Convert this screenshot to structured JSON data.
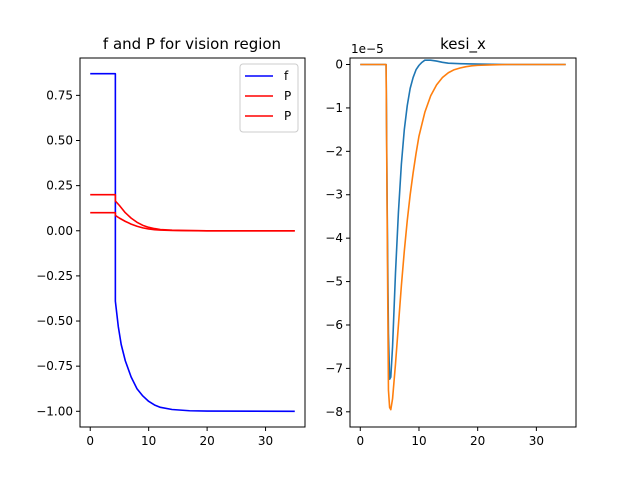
{
  "chart_data": [
    {
      "type": "line",
      "title": "f and P for vision region",
      "xlabel": "",
      "ylabel": "",
      "xlim": [
        -1.75,
        36.75
      ],
      "ylim": [
        -1.087,
        0.957
      ],
      "x_ticks": [
        0,
        10,
        20,
        30
      ],
      "x_tick_labels": [
        "0",
        "10",
        "20",
        "30"
      ],
      "y_ticks": [
        0.75,
        0.5,
        0.25,
        0.0,
        -0.25,
        -0.5,
        -0.75,
        -1.0
      ],
      "y_tick_labels": [
        "0.75",
        "0.50",
        "0.25",
        "0.00",
        "−0.25",
        "−0.50",
        "−0.75",
        "−1.00"
      ],
      "grid": false,
      "legend": "top-right",
      "series": [
        {
          "name": "f",
          "color": "#0000ff",
          "points": [
            [
              0,
              0.87
            ],
            [
              4.3,
              0.87
            ],
            [
              4.3,
              -0.39
            ],
            [
              4.8,
              -0.53
            ],
            [
              5.3,
              -0.63
            ],
            [
              6,
              -0.72
            ],
            [
              7,
              -0.81
            ],
            [
              8,
              -0.875
            ],
            [
              9,
              -0.915
            ],
            [
              10,
              -0.945
            ],
            [
              11,
              -0.965
            ],
            [
              12,
              -0.978
            ],
            [
              14,
              -0.99
            ],
            [
              17,
              -0.997
            ],
            [
              20,
              -0.999
            ],
            [
              35,
              -1.0
            ]
          ]
        },
        {
          "name": "P",
          "color": "#ff0000",
          "points": [
            [
              0,
              0.2
            ],
            [
              4.3,
              0.2
            ],
            [
              4.3,
              0.165
            ],
            [
              5,
              0.14
            ],
            [
              6,
              0.1
            ],
            [
              7,
              0.07
            ],
            [
              8,
              0.047
            ],
            [
              9,
              0.03
            ],
            [
              10,
              0.019
            ],
            [
              11,
              0.012
            ],
            [
              12,
              0.007
            ],
            [
              14,
              0.003
            ],
            [
              17,
              0.001
            ],
            [
              20,
              0.0
            ],
            [
              35,
              0.0
            ]
          ]
        },
        {
          "name": "P",
          "color": "#ff0000",
          "points": [
            [
              0,
              0.1
            ],
            [
              4.3,
              0.1
            ],
            [
              4.3,
              0.085
            ],
            [
              5,
              0.07
            ],
            [
              6,
              0.052
            ],
            [
              7,
              0.037
            ],
            [
              8,
              0.025
            ],
            [
              9,
              0.016
            ],
            [
              10,
              0.01
            ],
            [
              11,
              0.006
            ],
            [
              12,
              0.004
            ],
            [
              14,
              0.0015
            ],
            [
              17,
              0.0005
            ],
            [
              20,
              0.0
            ],
            [
              35,
              0.0
            ]
          ]
        }
      ]
    },
    {
      "type": "line",
      "title": "kesi_x",
      "xlabel": "",
      "ylabel": "",
      "y_offset_label": "1e−5",
      "xlim": [
        -1.75,
        36.75
      ],
      "ylim": [
        -8.35,
        0.15
      ],
      "x_ticks": [
        0,
        10,
        20,
        30
      ],
      "x_tick_labels": [
        "0",
        "10",
        "20",
        "30"
      ],
      "y_ticks": [
        0,
        -1,
        -2,
        -3,
        -4,
        -5,
        -6,
        -7,
        -8
      ],
      "y_tick_labels": [
        "0",
        "−1",
        "−2",
        "−3",
        "−4",
        "−5",
        "−6",
        "−7",
        "−8"
      ],
      "grid": false,
      "legend": "none",
      "series": [
        {
          "color": "#1f77b4",
          "points": [
            [
              0,
              0
            ],
            [
              4.4,
              0
            ],
            [
              4.6,
              -3.5
            ],
            [
              4.8,
              -6.2
            ],
            [
              5.0,
              -7.25
            ],
            [
              5.2,
              -7.2
            ],
            [
              5.5,
              -6.5
            ],
            [
              6,
              -4.8
            ],
            [
              6.5,
              -3.4
            ],
            [
              7,
              -2.3
            ],
            [
              7.5,
              -1.5
            ],
            [
              8,
              -0.95
            ],
            [
              8.5,
              -0.55
            ],
            [
              9,
              -0.3
            ],
            [
              9.5,
              -0.12
            ],
            [
              10,
              -0.02
            ],
            [
              10.5,
              0.05
            ],
            [
              11,
              0.1
            ],
            [
              12,
              0.1
            ],
            [
              13,
              0.08
            ],
            [
              14,
              0.05
            ],
            [
              15,
              0.03
            ],
            [
              17,
              0.02
            ],
            [
              20,
              0.01
            ],
            [
              25,
              0.0
            ],
            [
              35,
              0.0
            ]
          ]
        },
        {
          "color": "#ff7f0e",
          "points": [
            [
              0,
              0
            ],
            [
              4.4,
              0
            ],
            [
              4.6,
              -4.0
            ],
            [
              4.8,
              -7.5
            ],
            [
              5.0,
              -7.9
            ],
            [
              5.2,
              -7.95
            ],
            [
              5.5,
              -7.7
            ],
            [
              6,
              -6.9
            ],
            [
              6.5,
              -6.0
            ],
            [
              7,
              -5.1
            ],
            [
              7.5,
              -4.3
            ],
            [
              8,
              -3.6
            ],
            [
              8.5,
              -3.0
            ],
            [
              9,
              -2.5
            ],
            [
              9.5,
              -2.05
            ],
            [
              10,
              -1.65
            ],
            [
              11,
              -1.1
            ],
            [
              12,
              -0.72
            ],
            [
              13,
              -0.47
            ],
            [
              14,
              -0.3
            ],
            [
              15,
              -0.19
            ],
            [
              16,
              -0.12
            ],
            [
              17,
              -0.08
            ],
            [
              18,
              -0.05
            ],
            [
              19,
              -0.03
            ],
            [
              20,
              -0.02
            ],
            [
              22,
              -0.01
            ],
            [
              25,
              0.0
            ],
            [
              35,
              0.0
            ]
          ]
        }
      ]
    }
  ]
}
